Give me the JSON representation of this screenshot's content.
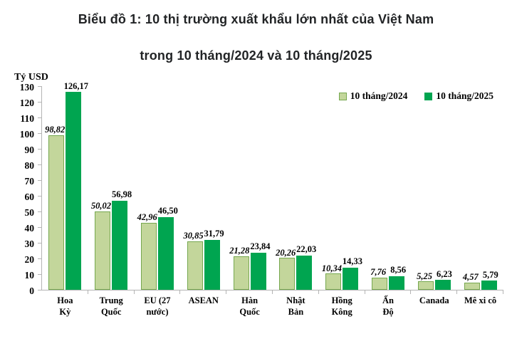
{
  "header": {
    "title_line1": "Biểu đồ 1: 10 thị trường xuất khẩu lớn nhất của Việt Nam",
    "title_line2": "trong 10 tháng/2024 và 10 tháng/2025"
  },
  "chart_data": {
    "type": "bar",
    "title": "Biểu đồ 1: 10 thị trường xuất khẩu lớn nhất của Việt Nam trong 10 tháng/2024 và 10 tháng/2025",
    "ylabel": "Tỷ USD",
    "xlabel": "",
    "ylim": [
      0,
      130
    ],
    "ytick_step": 10,
    "grid": false,
    "legend_position": "top-right",
    "decimal_separator": ",",
    "categories": [
      "Hoa\nKỳ",
      "Trung\nQuốc",
      "EU (27\nnước)",
      "ASEAN",
      "Hàn\nQuốc",
      "Nhật\nBản",
      "Hồng\nKông",
      "Ấn\nĐộ",
      "Canada",
      "Mê xi cô"
    ],
    "series": [
      {
        "name": "10 tháng/2024",
        "color": "#c3d69b",
        "border_color": "#76a84f",
        "values": [
          98.82,
          50.02,
          42.96,
          30.85,
          21.28,
          20.26,
          10.34,
          7.76,
          5.25,
          4.57
        ],
        "labels": [
          "98,82",
          "50,02",
          "42,96",
          "30,85",
          "21,28",
          "20,26",
          "10,34",
          "7,76",
          "5,25",
          "4,57"
        ]
      },
      {
        "name": "10 tháng/2025",
        "color": "#00a550",
        "border_color": "#00a550",
        "values": [
          126.17,
          56.98,
          46.5,
          31.79,
          23.84,
          22.03,
          14.33,
          8.56,
          6.23,
          5.79
        ],
        "labels": [
          "126,17",
          "56,98",
          "46,50",
          "31,79",
          "23,84",
          "22,03",
          "14,33",
          "8,56",
          "6,23",
          "5,79"
        ]
      }
    ]
  },
  "colors": {
    "title_text": "#222426",
    "chart_text": "#000000",
    "axis": "#b4b4b4",
    "background": "#ffffff",
    "series_2024_fill": "#c3d69b",
    "series_2024_border": "#76a84f",
    "series_2025_fill": "#00a550"
  }
}
